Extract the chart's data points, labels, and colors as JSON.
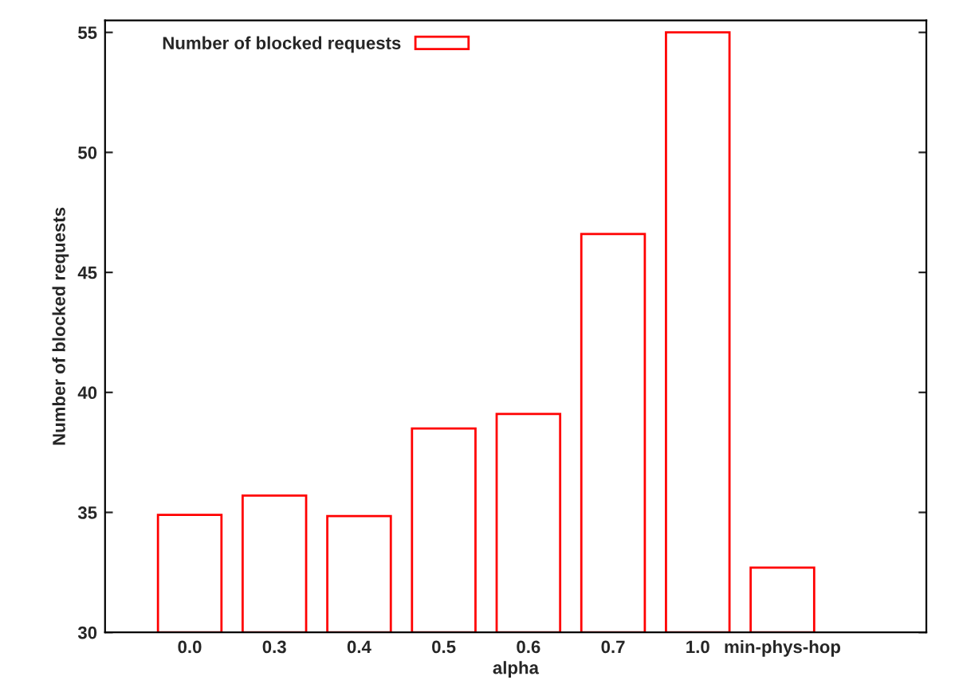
{
  "chart_data": {
    "type": "bar",
    "xlabel": "alpha",
    "ylabel": "Number of blocked requests",
    "categories": [
      "0.0",
      "0.3",
      "0.4",
      "0.5",
      "0.6",
      "0.7",
      "1.0",
      "min-phys-hop"
    ],
    "series": [
      {
        "name": "Number of blocked requests",
        "color": "#ff0000",
        "values": [
          34.9,
          35.7,
          34.85,
          38.5,
          39.1,
          46.6,
          55.0,
          32.7
        ]
      }
    ],
    "ylim": [
      30,
      55.5
    ],
    "yticks": [
      30,
      35,
      40,
      45,
      50,
      55
    ],
    "grid": false,
    "legend": "top left"
  }
}
